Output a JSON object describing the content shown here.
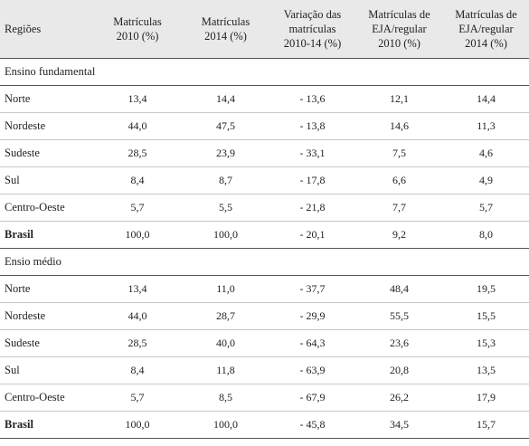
{
  "headers": [
    {
      "lines": [
        "Regiões"
      ]
    },
    {
      "lines": [
        "Matrículas",
        "2010 (%)"
      ]
    },
    {
      "lines": [
        "Matrículas",
        "2014 (%)"
      ]
    },
    {
      "lines": [
        "Variação das",
        "matrículas",
        "2010-14 (%)"
      ]
    },
    {
      "lines": [
        "Matrículas de",
        "EJA/regular",
        "2010 (%)"
      ]
    },
    {
      "lines": [
        "Matrículas de",
        "EJA/regular",
        "2014 (%)"
      ]
    }
  ],
  "sections": [
    {
      "title": "Ensino fundamental",
      "rows": [
        {
          "region": "Norte",
          "values": [
            "13,4",
            "14,4",
            "- 13,6",
            "12,1",
            "14,4"
          ]
        },
        {
          "region": "Nordeste",
          "values": [
            "44,0",
            "47,5",
            "- 13,8",
            "14,6",
            "11,3"
          ]
        },
        {
          "region": "Sudeste",
          "values": [
            "28,5",
            "23,9",
            "- 33,1",
            "7,5",
            "4,6"
          ]
        },
        {
          "region": "Sul",
          "values": [
            "8,4",
            "8,7",
            "- 17,8",
            "6,6",
            "4,9"
          ]
        },
        {
          "region": "Centro-Oeste",
          "values": [
            "5,7",
            "5,5",
            "- 21,8",
            "7,7",
            "5,7"
          ]
        },
        {
          "region": "Brasil",
          "values": [
            "100,0",
            "100,0",
            "- 20,1",
            "9,2",
            "8,0"
          ],
          "total": true
        }
      ]
    },
    {
      "title": "Ensio médio",
      "rows": [
        {
          "region": "Norte",
          "values": [
            "13,4",
            "11,0",
            "- 37,7",
            "48,4",
            "19,5"
          ]
        },
        {
          "region": "Nordeste",
          "values": [
            "44,0",
            "28,7",
            "- 29,9",
            "55,5",
            "15,5"
          ]
        },
        {
          "region": "Sudeste",
          "values": [
            "28,5",
            "40,0",
            "- 64,3",
            "23,6",
            "15,3"
          ]
        },
        {
          "region": "Sul",
          "values": [
            "8,4",
            "11,8",
            "- 63,9",
            "20,8",
            "13,5"
          ]
        },
        {
          "region": "Centro-Oeste",
          "values": [
            "5,7",
            "8,5",
            "- 67,9",
            "26,2",
            "17,9"
          ]
        },
        {
          "region": "Brasil",
          "values": [
            "100,0",
            "100,0",
            "- 45,8",
            "34,5",
            "15,7"
          ],
          "total": true
        }
      ]
    }
  ]
}
